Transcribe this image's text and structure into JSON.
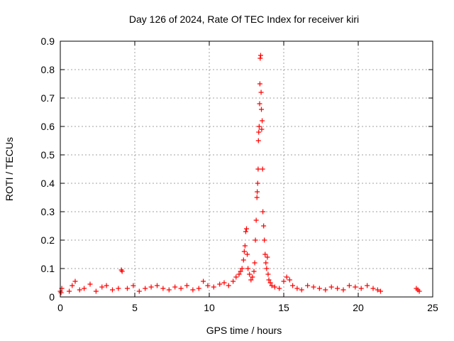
{
  "chart_data": {
    "type": "scatter",
    "title": "Day 126 of 2024, Rate Of TEC Index for receiver kiri",
    "xlabel": "GPS time / hours",
    "ylabel": "ROTI / TECUs",
    "xlim": [
      0,
      25
    ],
    "ylim": [
      0,
      0.9
    ],
    "x_ticks": [
      "0",
      "5",
      "10",
      "15",
      "20",
      "25"
    ],
    "y_ticks": [
      "0",
      "0.1",
      "0.2",
      "0.3",
      "0.4",
      "0.5",
      "0.6",
      "0.7",
      "0.8",
      "0.9"
    ],
    "grid": true,
    "marker": "+",
    "color": "#ff0000",
    "series": [
      {
        "x": [
          0.0,
          0.05,
          0.1,
          0.6,
          0.8,
          1.0,
          1.3,
          1.6,
          2.0,
          2.4,
          2.8,
          3.1,
          3.5,
          3.9,
          4.1,
          4.15,
          4.5,
          4.9,
          5.3,
          5.7,
          6.1,
          6.5,
          6.9,
          7.3,
          7.7,
          8.1,
          8.5,
          8.9,
          9.3,
          9.6,
          9.9,
          10.3,
          10.7,
          11.0,
          11.3,
          11.6,
          11.8,
          12.0,
          12.1,
          12.2,
          12.3,
          12.35,
          12.4,
          12.45,
          12.5,
          12.55,
          12.6,
          12.7,
          12.8,
          12.9,
          13.0,
          13.05,
          13.1,
          13.15,
          13.2,
          13.22,
          13.25,
          13.28,
          13.3,
          13.32,
          13.35,
          13.38,
          13.4,
          13.42,
          13.45,
          13.48,
          13.5,
          13.52,
          13.55,
          13.58,
          13.6,
          13.65,
          13.7,
          13.75,
          13.8,
          13.85,
          13.9,
          13.95,
          14.0,
          14.1,
          14.2,
          14.4,
          14.7,
          15.0,
          15.2,
          15.4,
          15.6,
          15.9,
          16.2,
          16.6,
          17.0,
          17.4,
          17.8,
          18.2,
          18.6,
          19.0,
          19.4,
          19.8,
          20.2,
          20.6,
          21.0,
          21.3,
          21.5,
          23.9,
          24.0,
          24.1
        ],
        "y": [
          0.02,
          0.015,
          0.03,
          0.02,
          0.04,
          0.055,
          0.025,
          0.03,
          0.045,
          0.02,
          0.035,
          0.04,
          0.025,
          0.03,
          0.095,
          0.09,
          0.03,
          0.04,
          0.02,
          0.03,
          0.035,
          0.04,
          0.03,
          0.025,
          0.035,
          0.03,
          0.04,
          0.025,
          0.03,
          0.055,
          0.04,
          0.035,
          0.045,
          0.05,
          0.04,
          0.055,
          0.07,
          0.08,
          0.09,
          0.1,
          0.13,
          0.16,
          0.18,
          0.23,
          0.24,
          0.15,
          0.1,
          0.08,
          0.06,
          0.07,
          0.09,
          0.12,
          0.2,
          0.27,
          0.35,
          0.37,
          0.4,
          0.45,
          0.55,
          0.58,
          0.6,
          0.68,
          0.75,
          0.84,
          0.85,
          0.72,
          0.66,
          0.59,
          0.62,
          0.45,
          0.3,
          0.25,
          0.2,
          0.15,
          0.12,
          0.1,
          0.14,
          0.08,
          0.06,
          0.05,
          0.04,
          0.035,
          0.03,
          0.055,
          0.07,
          0.06,
          0.04,
          0.03,
          0.025,
          0.04,
          0.035,
          0.03,
          0.025,
          0.035,
          0.03,
          0.025,
          0.04,
          0.035,
          0.03,
          0.04,
          0.03,
          0.025,
          0.02,
          0.03,
          0.025,
          0.02
        ]
      }
    ]
  }
}
